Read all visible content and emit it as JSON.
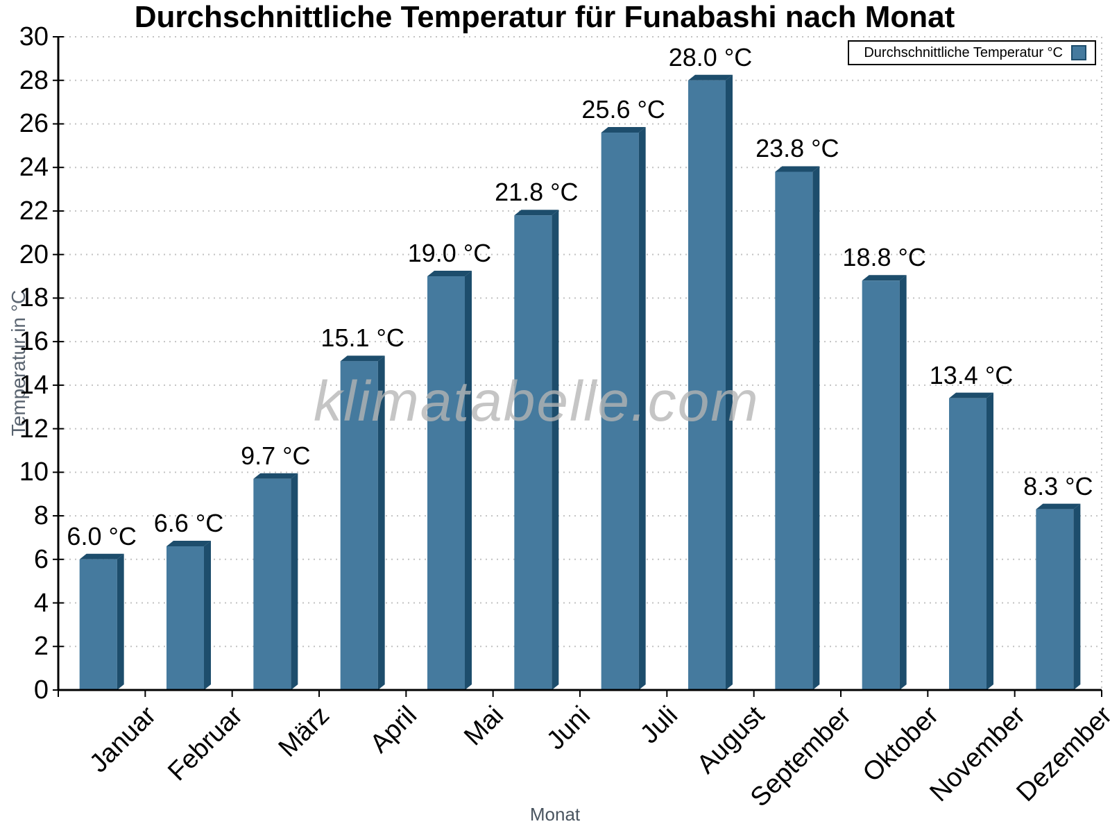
{
  "watermark": {
    "text": "klimatabelle.com"
  },
  "chart_data": {
    "type": "bar",
    "title": "Durchschnittliche Temperatur für Funabashi nach Monat",
    "xlabel": "Monat",
    "ylabel": "Temperatur in °C",
    "categories": [
      "Januar",
      "Februar",
      "März",
      "April",
      "Mai",
      "Juni",
      "Juli",
      "August",
      "September",
      "Oktober",
      "November",
      "Dezember"
    ],
    "values": [
      6.0,
      6.6,
      9.7,
      15.1,
      19.0,
      21.8,
      25.6,
      28.0,
      23.8,
      18.8,
      13.4,
      8.3
    ],
    "value_labels": [
      "6.0 °C",
      "6.6 °C",
      "9.7 °C",
      "15.1 °C",
      "19.0 °C",
      "21.8 °C",
      "25.6 °C",
      "28.0 °C",
      "23.8 °C",
      "18.8 °C",
      "13.4 °C",
      "8.3 °C"
    ],
    "ylim": [
      0,
      30
    ],
    "ytick_step": 2,
    "grid": "horizontal-dotted",
    "legend": {
      "label": "Durchschnittliche Temperatur °C",
      "position": "top-right"
    },
    "colors": {
      "bar_face": "#457a9e",
      "bar_edge": "#1d4d6c",
      "grid": "#c2c2c2",
      "axis": "#000000",
      "axis_title": "#5a6470",
      "watermark": "#b5b5b5"
    }
  }
}
